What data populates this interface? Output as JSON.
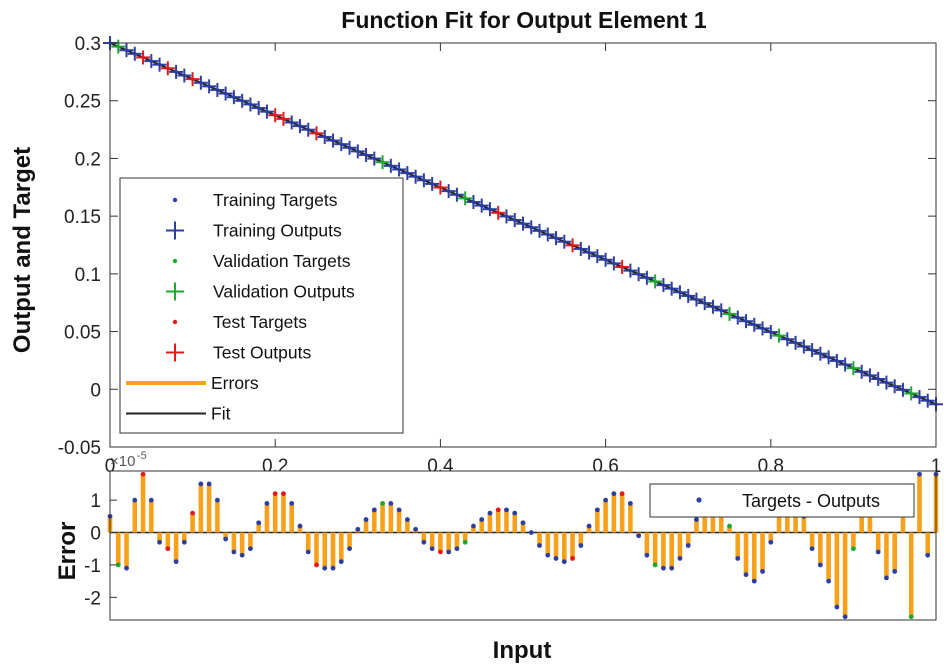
{
  "chart_data": [
    {
      "type": "scatter",
      "title": "Function Fit for Output Element 1",
      "xlabel": "",
      "ylabel": "Output and Target",
      "xlim": [
        0,
        1
      ],
      "ylim": [
        -0.05,
        0.3
      ],
      "x_ticks": [
        "0",
        "0.2",
        "0.4",
        "0.6",
        "0.8",
        "1"
      ],
      "y_ticks": [
        "-0.05",
        "0",
        "0.05",
        "0.1",
        "0.15",
        "0.2",
        "0.25",
        "0.3"
      ],
      "fit": {
        "x": [
          0,
          1
        ],
        "y": [
          0.3,
          -0.013
        ]
      },
      "legend_position": "middle-left",
      "legend": [
        "Training Targets",
        "Training Outputs",
        "Validation Targets",
        "Validation Outputs",
        "Test Targets",
        "Test Outputs",
        "Errors",
        "Fit"
      ],
      "sample_count": 101,
      "validation_x": [
        0.01,
        0.33,
        0.43,
        0.66,
        0.75,
        0.81,
        0.9,
        0.97
      ],
      "test_x": [
        0.04,
        0.07,
        0.1,
        0.2,
        0.21,
        0.25,
        0.4,
        0.47,
        0.56,
        0.62
      ],
      "colors": {
        "training": "#2d3f9e",
        "validation": "#1fa82f",
        "test": "#e31a1c",
        "errors": "#f7a11a",
        "fit": "#222222"
      }
    },
    {
      "type": "bar",
      "title": "",
      "xlabel": "Input",
      "ylabel": "Error",
      "y_exponent_base": "×10",
      "y_exponent": "-5",
      "xlim": [
        0,
        1
      ],
      "ylim": [
        -2.7,
        1.9
      ],
      "y_ticks": [
        "1",
        "0",
        "-1",
        "-2"
      ],
      "legend": [
        "Targets - Outputs"
      ],
      "legend_position": "top-right",
      "x": [
        0,
        0.01,
        0.02,
        0.03,
        0.04,
        0.05,
        0.06,
        0.07,
        0.08,
        0.09,
        0.1,
        0.11,
        0.12,
        0.13,
        0.14,
        0.15,
        0.16,
        0.17,
        0.18,
        0.19,
        0.2,
        0.21,
        0.22,
        0.23,
        0.24,
        0.25,
        0.26,
        0.27,
        0.28,
        0.29,
        0.3,
        0.31,
        0.32,
        0.33,
        0.34,
        0.35,
        0.36,
        0.37,
        0.38,
        0.39,
        0.4,
        0.41,
        0.42,
        0.43,
        0.44,
        0.45,
        0.46,
        0.47,
        0.48,
        0.49,
        0.5,
        0.51,
        0.52,
        0.53,
        0.54,
        0.55,
        0.56,
        0.57,
        0.58,
        0.59,
        0.6,
        0.61,
        0.62,
        0.63,
        0.64,
        0.65,
        0.66,
        0.67,
        0.68,
        0.69,
        0.7,
        0.71,
        0.72,
        0.73,
        0.74,
        0.75,
        0.76,
        0.77,
        0.78,
        0.79,
        0.8,
        0.81,
        0.82,
        0.83,
        0.84,
        0.85,
        0.86,
        0.87,
        0.88,
        0.89,
        0.9,
        0.91,
        0.92,
        0.93,
        0.94,
        0.95,
        0.96,
        0.97,
        0.98,
        0.99,
        1
      ],
      "values": [
        0.5,
        -1.0,
        -1.1,
        1.0,
        1.8,
        1.0,
        -0.3,
        -0.5,
        -0.9,
        -0.3,
        0.6,
        1.5,
        1.5,
        1.0,
        -0.2,
        -0.6,
        -0.7,
        -0.5,
        0.3,
        0.9,
        1.2,
        1.2,
        0.9,
        0.2,
        -0.6,
        -1.0,
        -1.1,
        -1.1,
        -0.9,
        -0.5,
        0.1,
        0.4,
        0.7,
        0.9,
        0.9,
        0.7,
        0.4,
        0.1,
        -0.3,
        -0.5,
        -0.6,
        -0.6,
        -0.5,
        -0.3,
        0.2,
        0.4,
        0.6,
        0.7,
        0.7,
        0.6,
        0.3,
        0.0,
        -0.4,
        -0.7,
        -0.8,
        -0.9,
        -0.8,
        -0.4,
        0.2,
        0.7,
        1.0,
        1.2,
        1.2,
        0.9,
        -0.1,
        -0.7,
        -1.0,
        -1.1,
        -1.1,
        -0.8,
        -0.4,
        0.4,
        0.7,
        0.7,
        0.7,
        0.2,
        -0.8,
        -1.3,
        -1.5,
        -1.2,
        -0.3,
        0.6,
        1.1,
        1.2,
        0.5,
        -0.5,
        -1.0,
        -1.5,
        -2.3,
        -2.6,
        -0.5,
        0.7,
        0.6,
        -0.6,
        -1.4,
        -1.2,
        0.9,
        -2.6,
        1.8,
        -0.7,
        1.8
      ]
    }
  ]
}
